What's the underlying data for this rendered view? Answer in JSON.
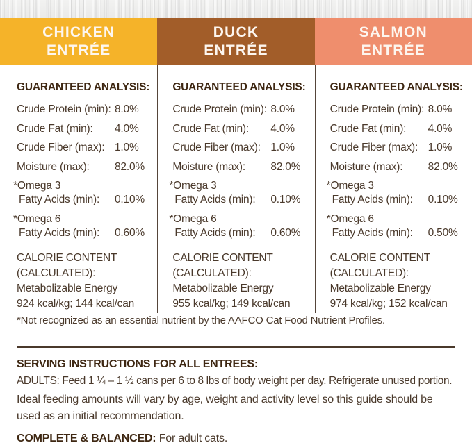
{
  "header": {
    "columns": [
      {
        "name": "CHICKEN",
        "type": "ENTRÉE",
        "bg": "#F5B329"
      },
      {
        "name": "DUCK",
        "type": "ENTRÉE",
        "bg": "#A25D29"
      },
      {
        "name": "SALMON",
        "type": "ENTRÉE",
        "bg": "#EF8E6D"
      }
    ]
  },
  "panels": [
    {
      "title": "GUARANTEED ANALYSIS:",
      "rows": [
        {
          "label": "Crude Protein (min):",
          "value": "8.0%"
        },
        {
          "label": "Crude Fat (min):",
          "value": "4.0%"
        },
        {
          "label": "Crude Fiber (max):",
          "value": "1.0%"
        },
        {
          "label": "Moisture (max):",
          "value": "82.0%"
        }
      ],
      "omega_rows": [
        {
          "line1": "*Omega 3",
          "line2": "Fatty Acids (min):",
          "value": "0.10%"
        },
        {
          "line1": "*Omega 6",
          "line2": "Fatty Acids (min):",
          "value": "0.60%"
        }
      ],
      "calorie": {
        "heading1": "CALORIE CONTENT",
        "heading2": "(CALCULATED):",
        "line1": "Metabolizable Energy",
        "line2": "924 kcal/kg; 144 kcal/can"
      }
    },
    {
      "title": "GUARANTEED ANALYSIS:",
      "rows": [
        {
          "label": "Crude Protein (min):",
          "value": "8.0%"
        },
        {
          "label": "Crude Fat (min):",
          "value": "4.0%"
        },
        {
          "label": "Crude Fiber (max):",
          "value": "1.0%"
        },
        {
          "label": "Moisture (max):",
          "value": "82.0%"
        }
      ],
      "omega_rows": [
        {
          "line1": "*Omega 3",
          "line2": "Fatty Acids (min):",
          "value": "0.10%"
        },
        {
          "line1": "*Omega 6",
          "line2": "Fatty Acids (min):",
          "value": "0.60%"
        }
      ],
      "calorie": {
        "heading1": "CALORIE CONTENT",
        "heading2": "(CALCULATED):",
        "line1": "Metabolizable Energy",
        "line2": "955 kcal/kg; 149 kcal/can"
      }
    },
    {
      "title": "GUARANTEED ANALYSIS:",
      "rows": [
        {
          "label": "Crude Protein (min):",
          "value": "8.0%"
        },
        {
          "label": "Crude Fat (min):",
          "value": "4.0%"
        },
        {
          "label": "Crude Fiber (max):",
          "value": "1.0%"
        },
        {
          "label": "Moisture (max):",
          "value": "82.0%"
        }
      ],
      "omega_rows": [
        {
          "line1": "*Omega 3",
          "line2": "Fatty Acids (min):",
          "value": "0.10%"
        },
        {
          "line1": "*Omega 6",
          "line2": "Fatty Acids (min):",
          "value": "0.50%"
        }
      ],
      "calorie": {
        "heading1": "CALORIE CONTENT",
        "heading2": "(CALCULATED):",
        "line1": "Metabolizable Energy",
        "line2": "974 kcal/kg; 152 kcal/can"
      }
    }
  ],
  "footnote": "*Not recognized as an essential nutrient by the AAFCO Cat Food Nutrient Profiles.",
  "serving": {
    "title": "SERVING INSTRUCTIONS FOR ALL ENTREES:",
    "adults_line": "ADULTS: Feed 1 ¼ – 1 ½ cans per 6 to 8 lbs of body weight per day. Refrigerate unused portion.",
    "ideal_line": "Ideal feeding amounts will vary by age, weight and activity level so this guide should be used as an initial recommendation.",
    "complete_label": "COMPLETE & BALANCED:",
    "complete_rest": " For adult cats."
  },
  "colors": {
    "chicken_bg": "#F5B329",
    "duck_bg": "#A25D29",
    "salmon_bg": "#EF8E6D",
    "text_body": "#4A392B",
    "text_heading": "#3E2712",
    "divider": "#55453A"
  }
}
